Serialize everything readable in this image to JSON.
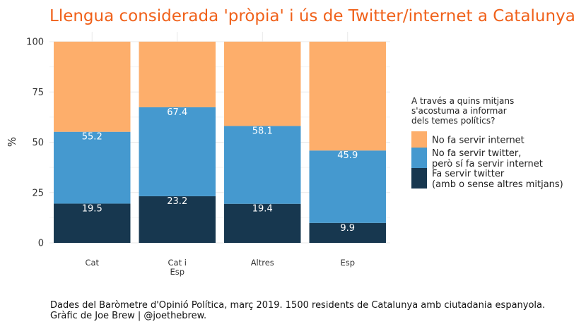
{
  "colors": {
    "title": "#f0611a",
    "no_internet": "#fdae6b",
    "internet_no_twitter": "#4599cf",
    "twitter": "#17374f"
  },
  "chart_data": {
    "type": "bar",
    "stacked": true,
    "title": "Llengua considerada 'pròpia' i ús de Twitter/internet a Catalunya",
    "xlabel": "",
    "ylabel": "%",
    "ylim": [
      0,
      100
    ],
    "yticks": [
      "0",
      "25",
      "50",
      "75",
      "100"
    ],
    "grid": true,
    "categories": [
      [
        "Cat"
      ],
      [
        "Cat i",
        "Esp"
      ],
      [
        "Altres"
      ],
      [
        "Esp"
      ]
    ],
    "series": [
      {
        "name": "Fa servir twitter\n(amb o sense altres mitjans)",
        "color": "#17374f",
        "values": [
          19.5,
          23.2,
          19.4,
          9.9
        ],
        "labels": [
          "19.5",
          "23.2",
          "19.4",
          "9.9"
        ]
      },
      {
        "name": "No fa servir twitter,\nperò sí fa servir internet",
        "color": "#4599cf",
        "values": [
          35.7,
          44.2,
          38.7,
          36.0
        ],
        "labels": [
          "55.2",
          "67.4",
          "58.1",
          "45.9"
        ]
      },
      {
        "name": "No fa servir internet",
        "color": "#fdae6b",
        "values": [
          44.8,
          32.6,
          41.9,
          54.1
        ],
        "labels": [
          "",
          "",
          "",
          ""
        ]
      }
    ],
    "legend": {
      "title": "A través a quins mitjans\ns'acostuma a informar\ndels temes polítics?",
      "placement": "right",
      "order": [
        2,
        1,
        0
      ]
    },
    "caption": [
      "Dades del Baròmetre d'Opinió Política, març 2019. 1500 residents de Catalunya amb ciutadania espanyola.",
      "Gràfic de Joe Brew | @joethebrew."
    ]
  }
}
